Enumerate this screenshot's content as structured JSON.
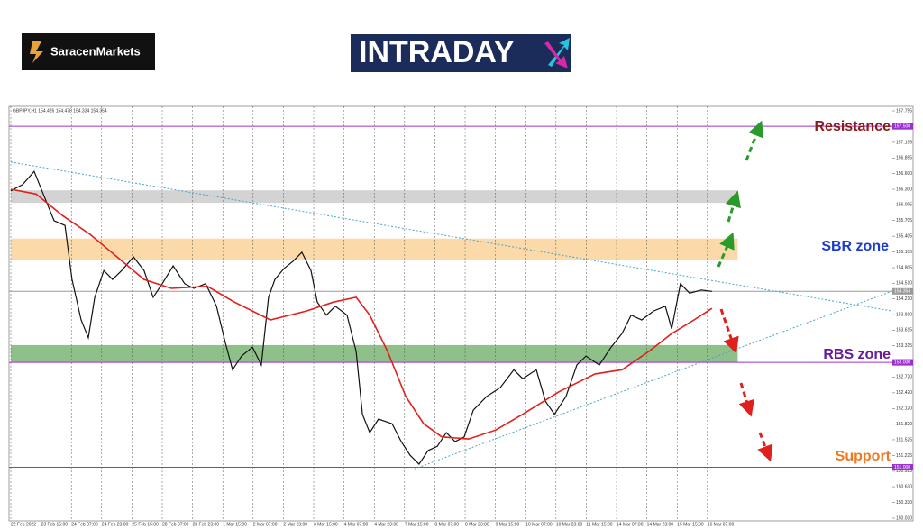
{
  "header": {
    "brand": "SaracenMarkets",
    "logo": "INTRADAY"
  },
  "chart_data": {
    "type": "line",
    "symbol_info": "GBPJPY,H1  154.426 154.478 154.334 154.354",
    "xlim": [
      0,
      29.1
    ],
    "ylim": [
      150.03,
      157.795
    ],
    "xticks": [
      {
        "value": 0,
        "label": "22 Feb 2022"
      },
      {
        "value": 1,
        "label": "23 Feb 15:00"
      },
      {
        "value": 2,
        "label": "24 Feb 07:00"
      },
      {
        "value": 3,
        "label": "24 Feb 23:00"
      },
      {
        "value": 4,
        "label": "25 Feb 15:00"
      },
      {
        "value": 5,
        "label": "28 Feb 07:00"
      },
      {
        "value": 6,
        "label": "28 Feb 23:00"
      },
      {
        "value": 7,
        "label": "1 Mar 15:00"
      },
      {
        "value": 8,
        "label": "2 Mar 07:00"
      },
      {
        "value": 9,
        "label": "2 Mar 23:00"
      },
      {
        "value": 10,
        "label": "3 Mar 15:00"
      },
      {
        "value": 11,
        "label": "4 Mar 07:00"
      },
      {
        "value": 12,
        "label": "4 Mar 23:00"
      },
      {
        "value": 13,
        "label": "7 Mar 15:00"
      },
      {
        "value": 14,
        "label": "8 Mar 07:00"
      },
      {
        "value": 15,
        "label": "8 Mar 23:00"
      },
      {
        "value": 16,
        "label": "9 Mar 15:00"
      },
      {
        "value": 17,
        "label": "10 Mar 07:00"
      },
      {
        "value": 18,
        "label": "10 Mar 23:00"
      },
      {
        "value": 19,
        "label": "11 Mar 15:00"
      },
      {
        "value": 20,
        "label": "14 Mar 07:00"
      },
      {
        "value": 21,
        "label": "14 Mar 23:00"
      },
      {
        "value": 22,
        "label": "15 Mar 15:00"
      },
      {
        "value": 23,
        "label": "16 Mar 07:00"
      }
    ],
    "yticks": [
      157.795,
      157.495,
      157.195,
      156.895,
      {
        "value": 156.6,
        "label": "156.600"
      },
      {
        "value": 156.3,
        "label": "156.300"
      },
      156.005,
      155.705,
      155.405,
      155.105,
      154.805,
      {
        "value": 154.51,
        "label": "154.510"
      },
      {
        "value": 154.21,
        "label": "154.210"
      },
      {
        "value": 153.91,
        "label": "153.910"
      },
      153.615,
      153.315,
      153.015,
      {
        "value": 152.72,
        "label": "152.720"
      },
      {
        "value": 152.42,
        "label": "152.420"
      },
      {
        "value": 152.12,
        "label": "152.120"
      },
      {
        "value": 151.82,
        "label": "151.820"
      },
      151.525,
      151.225,
      150.925,
      {
        "value": 150.63,
        "label": "150.630"
      },
      {
        "value": 150.33,
        "label": "150.330"
      },
      {
        "value": 150.03,
        "label": "150.030"
      }
    ],
    "grid": true,
    "series": [
      {
        "color": "#111111",
        "x": [
          0,
          0.39,
          0.77,
          1.07,
          1.43,
          1.79,
          2.02,
          2.32,
          2.56,
          2.77,
          3.07,
          3.36,
          3.66,
          4.05,
          4.4,
          4.7,
          5.0,
          5.36,
          5.74,
          6.04,
          6.43,
          6.79,
          7.08,
          7.32,
          7.62,
          7.98,
          8.27,
          8.51,
          8.72,
          9.02,
          9.32,
          9.61,
          9.91,
          10.12,
          10.42,
          10.71,
          11.1,
          11.4,
          11.61,
          11.85,
          12.14,
          12.59,
          12.89,
          13.18,
          13.48,
          13.78,
          14.08,
          14.38,
          14.67,
          14.97,
          15.27,
          15.71,
          16.16,
          16.61,
          16.9,
          17.35,
          17.65,
          17.95,
          18.33,
          18.69,
          18.99,
          19.43,
          19.82,
          20.18,
          20.48,
          20.83,
          21.22,
          21.61,
          21.82,
          22.11,
          22.41,
          22.8,
          23.15
        ],
        "values": [
          156.27,
          156.39,
          156.64,
          156.21,
          155.7,
          155.61,
          154.58,
          153.81,
          153.47,
          154.24,
          154.75,
          154.58,
          154.75,
          155.01,
          154.75,
          154.24,
          154.5,
          154.84,
          154.5,
          154.41,
          154.5,
          154.07,
          153.38,
          152.86,
          153.12,
          153.29,
          152.95,
          154.24,
          154.58,
          154.79,
          154.93,
          155.1,
          154.75,
          154.15,
          153.9,
          154.07,
          153.9,
          153.21,
          152.01,
          151.66,
          151.92,
          151.83,
          151.49,
          151.23,
          151.06,
          151.32,
          151.4,
          151.66,
          151.49,
          151.58,
          152.09,
          152.35,
          152.52,
          152.86,
          152.69,
          152.86,
          152.26,
          152.01,
          152.35,
          152.95,
          153.12,
          152.95,
          153.29,
          153.55,
          153.9,
          153.81,
          153.98,
          154.07,
          153.64,
          154.5,
          154.32,
          154.38,
          154.354
        ]
      },
      {
        "color": "#e0201b",
        "x": [
          0,
          0.83,
          1.73,
          2.62,
          3.51,
          4.4,
          5.3,
          6.49,
          7.38,
          8.57,
          9.76,
          10.65,
          11.4,
          11.85,
          12.44,
          13.04,
          13.63,
          14.23,
          15.12,
          16.01,
          16.9,
          18.1,
          19.29,
          20.18,
          21.07,
          21.82,
          22.56,
          23.15
        ],
        "values": [
          156.3,
          156.21,
          155.79,
          155.44,
          155.01,
          154.58,
          154.41,
          154.45,
          154.15,
          153.81,
          153.98,
          154.15,
          154.24,
          153.9,
          153.21,
          152.35,
          151.83,
          151.58,
          151.54,
          151.71,
          152.01,
          152.44,
          152.78,
          152.86,
          153.21,
          153.55,
          153.81,
          154.03
        ]
      }
    ],
    "zones": [
      {
        "x": [
          0,
          24
        ],
        "ymin": 156.04,
        "ymax": 156.28,
        "color": "#d3d3d3"
      },
      {
        "x": [
          0,
          24
        ],
        "ymin": 154.96,
        "ymax": 155.36,
        "color": "#fcd9a8"
      },
      {
        "x": [
          0,
          24
        ],
        "ymin": 153.0,
        "ymax": 153.33,
        "color": "#8fc08a"
      }
    ],
    "levels": [
      {
        "value": 157.5,
        "label": "157.500",
        "color": "#9b30d0"
      },
      {
        "value": 154.354,
        "label": "154.354",
        "color": "#9a9a9a"
      },
      {
        "value": 153.0,
        "label": "153.000",
        "color": "#9b30d0"
      },
      {
        "value": 151.0,
        "label": "151.000",
        "color": "#9b30d0"
      }
    ],
    "trendlines": [
      {
        "x": [
          0,
          29.1
        ],
        "values": [
          156.82,
          153.98
        ],
        "color": "#4aa3c8"
      },
      {
        "x": [
          13.33,
          29.1
        ],
        "values": [
          150.97,
          154.36
        ],
        "color": "#4aa3c8"
      }
    ],
    "annotations": [
      "Resistance",
      "SBR zone",
      "RBS zone",
      "Support"
    ]
  }
}
